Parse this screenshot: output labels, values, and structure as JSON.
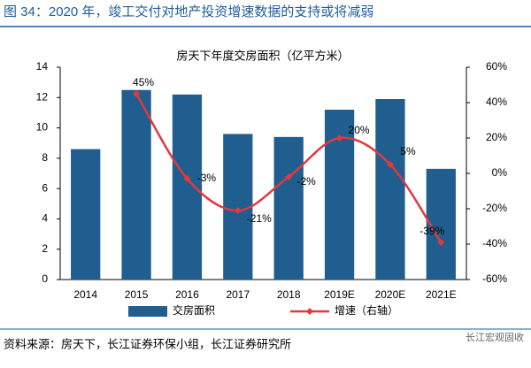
{
  "header": {
    "title": "图 34：2020 年，竣工交付对地产投资增速数据的支持或将减弱"
  },
  "chart_data": {
    "type": "bar_line",
    "title": "房天下年度交房面积（亿平方米）",
    "categories": [
      "2014",
      "2015",
      "2016",
      "2017",
      "2018",
      "2019E",
      "2020E",
      "2021E"
    ],
    "series": [
      {
        "name": "交房面积",
        "type": "bar",
        "color": "#205e8f",
        "values": [
          8.6,
          12.5,
          12.2,
          9.6,
          9.4,
          11.2,
          11.9,
          7.3
        ]
      },
      {
        "name": "增速（右轴）",
        "type": "line",
        "axis": "y2",
        "color": "#e0393e",
        "values": [
          null,
          45,
          -3,
          -21,
          -2,
          20,
          5,
          -39
        ],
        "value_labels": [
          null,
          "45%",
          "-3%",
          "-21%",
          "-2%",
          "20%",
          "5%",
          "-39%"
        ]
      }
    ],
    "ylim": [
      0,
      14
    ],
    "yticks": [
      0,
      2,
      4,
      6,
      8,
      10,
      12,
      14
    ],
    "y2lim": [
      -60,
      60
    ],
    "y2ticks": [
      {
        "value": -60,
        "label": "-60%"
      },
      {
        "value": -40,
        "label": "-40%"
      },
      {
        "value": -20,
        "label": "-20%"
      },
      {
        "value": 0,
        "label": "0%"
      },
      {
        "value": 20,
        "label": "20%"
      },
      {
        "value": 40,
        "label": "40%"
      },
      {
        "value": 60,
        "label": "60%"
      }
    ],
    "smooth": true
  },
  "footer": {
    "source": "资料来源：房天下，长江证券环保小组，长江证券研究所",
    "watermark": "长江宏观固收"
  }
}
